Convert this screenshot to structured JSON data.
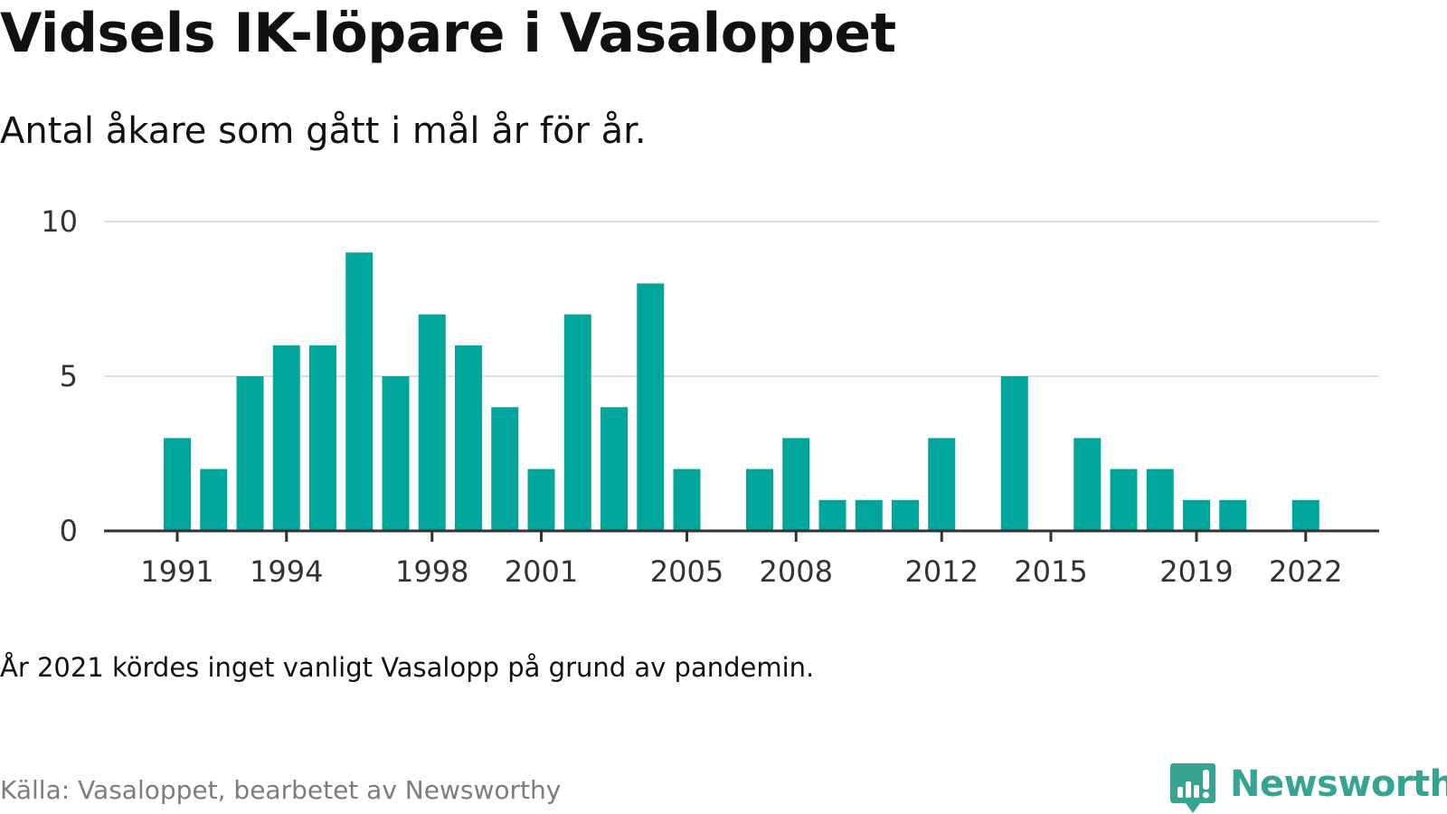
{
  "title": "Vidsels IK-löpare i Vasaloppet",
  "subtitle": "Antal åkare som gått i mål år för år.",
  "note": "År 2021 kördes inget vanligt Vasalopp på grund av pandemin.",
  "source": "Källa: Vasaloppet, bearbetet av Newsworthy",
  "brand": {
    "name": "Newsworthy",
    "icon": "newsworthy-logo-icon"
  },
  "colors": {
    "bar": "#00a69b",
    "grid": "#dddddd",
    "axis": "#333333",
    "brand": "#37a493"
  },
  "chart_data": {
    "type": "bar",
    "title": "Vidsels IK-löpare i Vasaloppet",
    "subtitle": "Antal åkare som gått i mål år för år.",
    "xlabel": "",
    "ylabel": "",
    "ylim": [
      0,
      10
    ],
    "yticks": [
      0,
      5,
      10
    ],
    "xtick_labels": [
      "1991",
      "1994",
      "1998",
      "2001",
      "2005",
      "2008",
      "2012",
      "2015",
      "2019",
      "2022"
    ],
    "grid": "horizontal",
    "categories": [
      "1991",
      "1992",
      "1993",
      "1994",
      "1995",
      "1996",
      "1997",
      "1998",
      "1999",
      "2000",
      "2001",
      "2002",
      "2003",
      "2004",
      "2005",
      "2006",
      "2007",
      "2008",
      "2009",
      "2010",
      "2011",
      "2012",
      "2013",
      "2014",
      "2015",
      "2016",
      "2017",
      "2018",
      "2019",
      "2020",
      "2021",
      "2022"
    ],
    "values": [
      3,
      2,
      5,
      6,
      6,
      9,
      5,
      7,
      6,
      4,
      2,
      7,
      4,
      8,
      2,
      0,
      2,
      3,
      1,
      1,
      1,
      3,
      0,
      5,
      0,
      3,
      2,
      2,
      1,
      1,
      0,
      1
    ]
  }
}
